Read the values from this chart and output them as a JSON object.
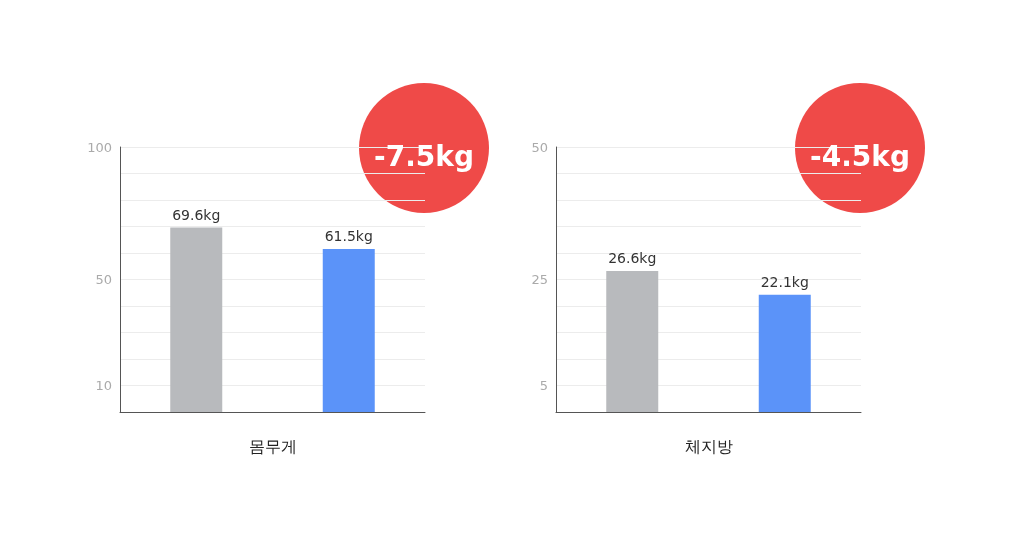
{
  "chart_data": [
    {
      "type": "bar",
      "xlabel": "몸무게",
      "categories": [
        null,
        null
      ],
      "values": [
        69.6,
        61.5
      ],
      "colors": [
        "#b8babd",
        "#5b93f9"
      ],
      "value_labels": [
        "69.6kg",
        "61.5kg"
      ],
      "ylim": [
        0,
        100
      ],
      "yticks": [
        10,
        {
          "value": 20,
          "label": null
        },
        {
          "value": 30,
          "label": null
        },
        {
          "value": 40,
          "label": null
        },
        50,
        {
          "value": 60,
          "label": null
        },
        {
          "value": 70,
          "label": null
        },
        {
          "value": 80,
          "label": null
        },
        {
          "value": 90,
          "label": null
        },
        100
      ],
      "grid": "y",
      "annotations": [
        "-7.5kg"
      ]
    },
    {
      "type": "bar",
      "xlabel": "체지방",
      "categories": [
        null,
        null
      ],
      "values": [
        26.6,
        22.1
      ],
      "colors": [
        "#b8babd",
        "#5b93f9"
      ],
      "value_labels": [
        "26.6kg",
        "22.1kg"
      ],
      "ylim": [
        0,
        50
      ],
      "yticks": [
        5,
        {
          "value": 10,
          "label": null
        },
        {
          "value": 15,
          "label": null
        },
        {
          "value": 20,
          "label": null
        },
        25,
        {
          "value": 30,
          "label": null
        },
        {
          "value": 35,
          "label": null
        },
        {
          "value": 40,
          "label": null
        },
        {
          "value": 45,
          "label": null
        },
        50
      ],
      "grid": "y",
      "annotations": [
        "-4.5kg"
      ]
    }
  ]
}
